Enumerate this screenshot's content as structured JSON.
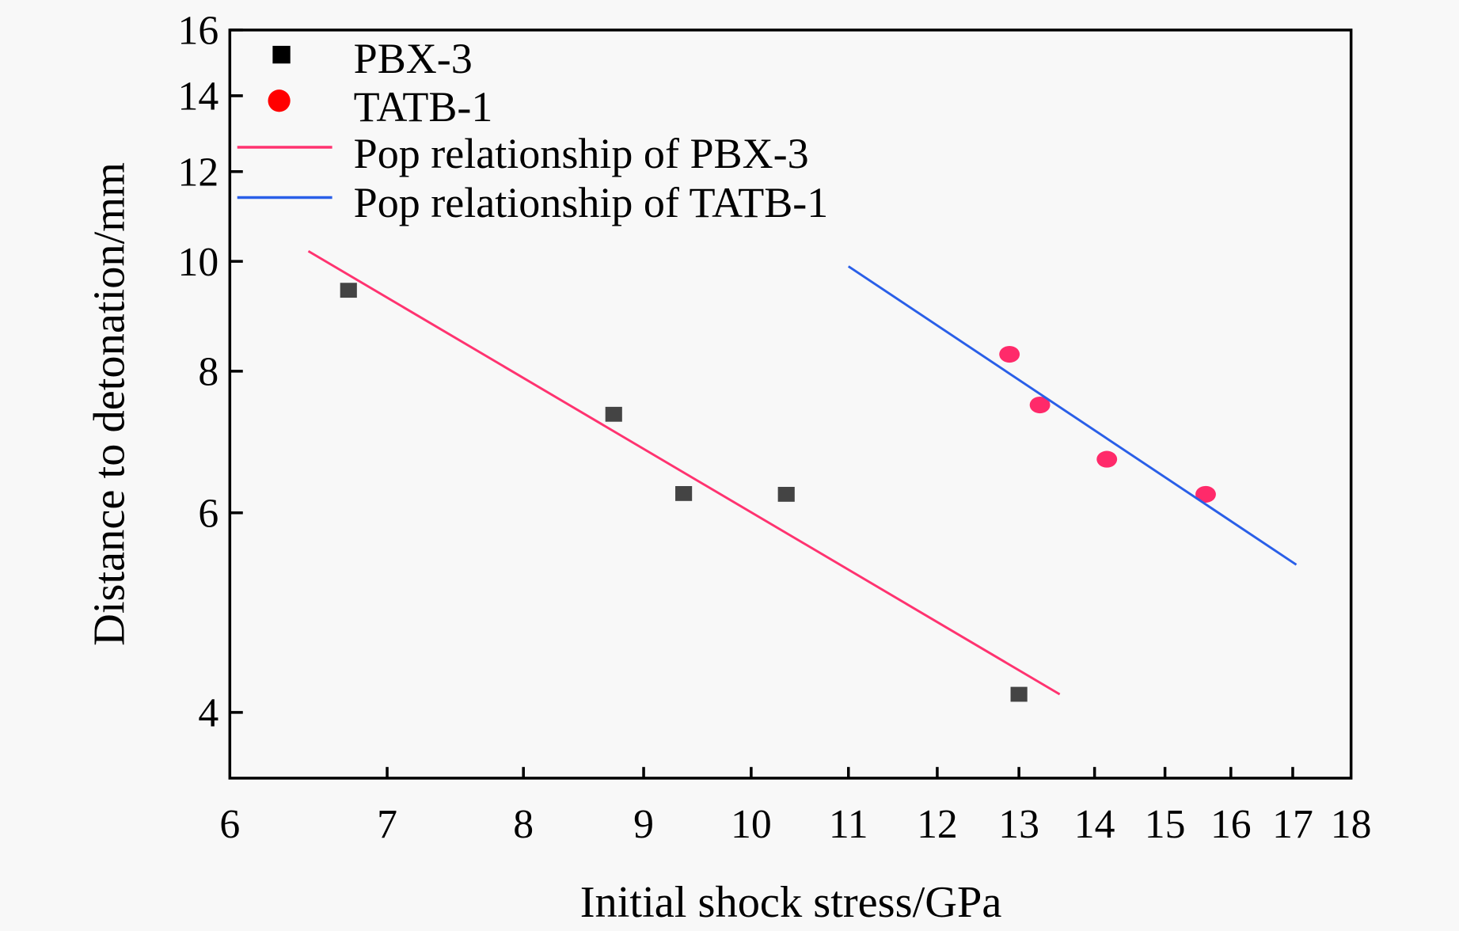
{
  "chart_data": {
    "type": "scatter",
    "title": "",
    "xlabel": "Initial shock stress/GPa",
    "ylabel": "Distance to detonation/mm",
    "x_scale": "log",
    "y_scale": "log",
    "xlim": [
      6,
      18
    ],
    "ylim": [
      3.5,
      16
    ],
    "x_ticks": [
      6,
      7,
      8,
      9,
      10,
      11,
      12,
      13,
      14,
      15,
      16,
      17,
      18
    ],
    "y_ticks": [
      4,
      6,
      8,
      10,
      12,
      14,
      16
    ],
    "legend_position": "top-left",
    "grid": false,
    "series": [
      {
        "name": "PBX-3",
        "kind": "points",
        "marker": "square",
        "color": "#444444",
        "legend_color": "#000000",
        "x": [
          6.74,
          8.74,
          9.36,
          10.35,
          13.0
        ],
        "y": [
          9.43,
          7.33,
          6.24,
          6.23,
          4.15
        ]
      },
      {
        "name": "TATB-1",
        "kind": "points",
        "marker": "circle",
        "color": "#ff2a6a",
        "legend_color": "#ff0000",
        "x": [
          12.88,
          13.27,
          14.17,
          15.61
        ],
        "y": [
          8.28,
          7.47,
          6.69,
          6.23
        ]
      },
      {
        "name": "Pop relationship of PBX-3",
        "kind": "line",
        "color": "#ff3370",
        "x": [
          6.48,
          13.53
        ],
        "y": [
          10.21,
          4.15
        ]
      },
      {
        "name": "Pop relationship of TATB-1",
        "kind": "line",
        "color": "#2a5fe8",
        "x": [
          11.0,
          17.06
        ],
        "y": [
          9.9,
          5.4
        ]
      }
    ]
  }
}
